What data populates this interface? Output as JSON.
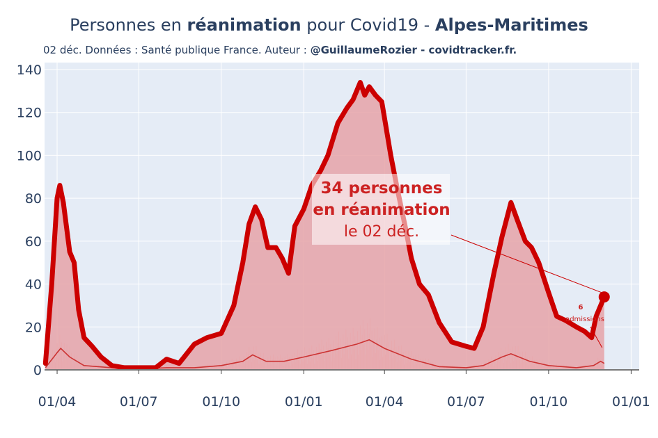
{
  "title": {
    "part1": "Personnes en ",
    "part2": "réanimation",
    "part3": " pour Covid19 - ",
    "part4": "Alpes-Maritimes"
  },
  "subtitle": {
    "text": "02 déc. Données : Santé publique France. Auteur : ",
    "author": "@GuillaumeRozier - covidtracker.fr."
  },
  "colors": {
    "line": "#cc0000",
    "fill": "#e6a3a8",
    "thin": "#cc3333",
    "bg": "#e5ecf6",
    "axis": "#444444"
  },
  "annotation": {
    "count_line": "34 personnes",
    "label_line": "en réanimation",
    "date_line": "le 02 déc."
  },
  "small_annotation": {
    "value": "6",
    "label": "admissions"
  },
  "chart_data": {
    "type": "area",
    "x_range": [
      "2020-03-18",
      "2022-01-10"
    ],
    "ylim": [
      0,
      140
    ],
    "y_ticks": [
      0,
      20,
      40,
      60,
      80,
      100,
      120,
      140
    ],
    "x_ticks": [
      {
        "date": "2020-04-01",
        "label": "01/04"
      },
      {
        "date": "2020-07-01",
        "label": "01/07"
      },
      {
        "date": "2020-10-01",
        "label": "01/10"
      },
      {
        "date": "2021-01-01",
        "label": "01/01"
      },
      {
        "date": "2021-04-01",
        "label": "01/04"
      },
      {
        "date": "2021-07-01",
        "label": "01/07"
      },
      {
        "date": "2021-10-01",
        "label": "01/10"
      },
      {
        "date": "2022-01-01",
        "label": "01/01"
      }
    ],
    "series": [
      {
        "name": "Personnes en réanimation",
        "points": [
          [
            "2020-03-19",
            3
          ],
          [
            "2020-03-26",
            40
          ],
          [
            "2020-04-01",
            80
          ],
          [
            "2020-04-04",
            86
          ],
          [
            "2020-04-08",
            78
          ],
          [
            "2020-04-15",
            55
          ],
          [
            "2020-04-20",
            50
          ],
          [
            "2020-04-25",
            28
          ],
          [
            "2020-05-01",
            15
          ],
          [
            "2020-05-10",
            11
          ],
          [
            "2020-05-20",
            6
          ],
          [
            "2020-06-01",
            2
          ],
          [
            "2020-06-15",
            1
          ],
          [
            "2020-07-01",
            1
          ],
          [
            "2020-07-20",
            1
          ],
          [
            "2020-08-01",
            5
          ],
          [
            "2020-08-15",
            3
          ],
          [
            "2020-09-01",
            12
          ],
          [
            "2020-09-15",
            15
          ],
          [
            "2020-10-01",
            17
          ],
          [
            "2020-10-15",
            30
          ],
          [
            "2020-10-25",
            50
          ],
          [
            "2020-11-01",
            68
          ],
          [
            "2020-11-08",
            76
          ],
          [
            "2020-11-15",
            70
          ],
          [
            "2020-11-22",
            57
          ],
          [
            "2020-12-01",
            57
          ],
          [
            "2020-12-08",
            52
          ],
          [
            "2020-12-15",
            45
          ],
          [
            "2020-12-22",
            67
          ],
          [
            "2021-01-01",
            75
          ],
          [
            "2021-01-10",
            86
          ],
          [
            "2021-01-20",
            93
          ],
          [
            "2021-01-28",
            100
          ],
          [
            "2021-02-08",
            115
          ],
          [
            "2021-02-18",
            122
          ],
          [
            "2021-02-25",
            126
          ],
          [
            "2021-03-05",
            134
          ],
          [
            "2021-03-10",
            128
          ],
          [
            "2021-03-15",
            132
          ],
          [
            "2021-03-22",
            128
          ],
          [
            "2021-03-29",
            125
          ],
          [
            "2021-04-08",
            100
          ],
          [
            "2021-04-15",
            85
          ],
          [
            "2021-04-25",
            65
          ],
          [
            "2021-05-01",
            52
          ],
          [
            "2021-05-10",
            40
          ],
          [
            "2021-05-20",
            35
          ],
          [
            "2021-06-01",
            22
          ],
          [
            "2021-06-15",
            13
          ],
          [
            "2021-07-01",
            11
          ],
          [
            "2021-07-10",
            10
          ],
          [
            "2021-07-20",
            20
          ],
          [
            "2021-08-01",
            45
          ],
          [
            "2021-08-10",
            62
          ],
          [
            "2021-08-20",
            78
          ],
          [
            "2021-08-27",
            70
          ],
          [
            "2021-09-05",
            60
          ],
          [
            "2021-09-12",
            57
          ],
          [
            "2021-09-20",
            50
          ],
          [
            "2021-10-01",
            36
          ],
          [
            "2021-10-10",
            25
          ],
          [
            "2021-10-20",
            23
          ],
          [
            "2021-11-01",
            20
          ],
          [
            "2021-11-10",
            18
          ],
          [
            "2021-11-18",
            15
          ],
          [
            "2021-11-23",
            25
          ],
          [
            "2021-12-02",
            34
          ]
        ]
      },
      {
        "name": "Admissions",
        "points": [
          [
            "2020-03-19",
            1
          ],
          [
            "2020-04-01",
            8
          ],
          [
            "2020-04-05",
            10
          ],
          [
            "2020-04-15",
            6
          ],
          [
            "2020-05-01",
            2
          ],
          [
            "2020-06-01",
            1
          ],
          [
            "2020-07-01",
            0.5
          ],
          [
            "2020-08-01",
            1
          ],
          [
            "2020-09-01",
            1
          ],
          [
            "2020-10-01",
            2
          ],
          [
            "2020-10-25",
            4
          ],
          [
            "2020-11-05",
            7
          ],
          [
            "2020-11-20",
            4
          ],
          [
            "2020-12-10",
            4
          ],
          [
            "2021-01-01",
            6
          ],
          [
            "2021-02-01",
            9
          ],
          [
            "2021-03-01",
            12
          ],
          [
            "2021-03-15",
            14
          ],
          [
            "2021-04-01",
            10
          ],
          [
            "2021-05-01",
            5
          ],
          [
            "2021-06-01",
            1.5
          ],
          [
            "2021-07-01",
            1
          ],
          [
            "2021-07-20",
            2
          ],
          [
            "2021-08-10",
            6
          ],
          [
            "2021-08-20",
            7.5
          ],
          [
            "2021-09-10",
            4
          ],
          [
            "2021-10-01",
            2
          ],
          [
            "2021-11-01",
            1
          ],
          [
            "2021-11-20",
            2
          ],
          [
            "2021-11-28",
            4
          ],
          [
            "2021-12-02",
            3
          ]
        ]
      }
    ],
    "last_point": {
      "date": "2021-12-02",
      "value": 34
    }
  }
}
